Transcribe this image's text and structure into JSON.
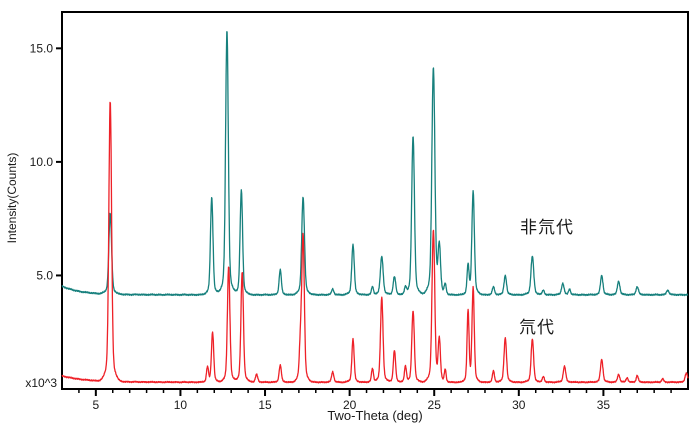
{
  "chart_data": {
    "type": "line",
    "title": "",
    "xlabel": "Two-Theta (deg)",
    "ylabel": "Intensity(Counts)",
    "y_multiplier_label": "x10^3",
    "xlim": [
      3,
      40
    ],
    "ylim": [
      0,
      16.6
    ],
    "grid": false,
    "frame": true,
    "background": "#ffffff",
    "axis_color": "#000000",
    "x_major_ticks": [
      5,
      10,
      15,
      20,
      25,
      30,
      35
    ],
    "x_minor_step": 1,
    "y_ticks": [
      {
        "value": 5,
        "label": "5.0"
      },
      {
        "value": 10,
        "label": "10.0"
      },
      {
        "value": 15,
        "label": "15.0"
      }
    ],
    "legend_position": "inline-annotations",
    "series": [
      {
        "name": "非氘代",
        "color": "#17807d",
        "label_color": "#69b0ae",
        "baseline": 4.15,
        "baseline_left_boost": {
          "amp": 0.38,
          "tau": 1.1
        },
        "noise": 0.02,
        "peaks_format": [
          "two_theta_deg",
          "peak_top_value_x10^3",
          "width_deg"
        ],
        "peaks": [
          [
            5.85,
            7.7,
            0.11
          ],
          [
            11.85,
            8.45,
            0.1
          ],
          [
            12.75,
            15.8,
            0.11
          ],
          [
            13.6,
            8.75,
            0.1
          ],
          [
            15.9,
            5.25,
            0.09
          ],
          [
            17.25,
            8.45,
            0.11
          ],
          [
            19.0,
            4.4,
            0.09
          ],
          [
            20.2,
            6.35,
            0.1
          ],
          [
            21.35,
            4.5,
            0.08
          ],
          [
            21.9,
            5.85,
            0.11
          ],
          [
            22.65,
            4.95,
            0.1
          ],
          [
            23.3,
            4.45,
            0.08
          ],
          [
            23.75,
            11.15,
            0.11
          ],
          [
            24.95,
            14.15,
            0.12
          ],
          [
            25.3,
            6.2,
            0.1
          ],
          [
            25.65,
            4.6,
            0.08
          ],
          [
            27.0,
            5.4,
            0.08
          ],
          [
            27.3,
            8.7,
            0.1
          ],
          [
            28.5,
            4.5,
            0.09
          ],
          [
            29.2,
            5.0,
            0.1
          ],
          [
            30.8,
            5.85,
            0.11
          ],
          [
            31.45,
            4.35,
            0.08
          ],
          [
            32.6,
            4.65,
            0.1
          ],
          [
            33.0,
            4.4,
            0.08
          ],
          [
            34.9,
            5.0,
            0.1
          ],
          [
            35.9,
            4.75,
            0.1
          ],
          [
            37.0,
            4.5,
            0.1
          ],
          [
            38.8,
            4.35,
            0.1
          ]
        ]
      },
      {
        "name": "氘代",
        "color": "#ee2128",
        "label_color": "#f2797e",
        "baseline": 0.3,
        "baseline_left_boost": {
          "amp": 0.28,
          "tau": 1.4
        },
        "noise": 0.018,
        "peaks_format": [
          "two_theta_deg",
          "peak_top_value_x10^3",
          "width_deg"
        ],
        "peaks": [
          [
            5.85,
            12.65,
            0.11
          ],
          [
            11.6,
            0.95,
            0.08
          ],
          [
            11.9,
            2.5,
            0.09
          ],
          [
            12.85,
            5.4,
            0.1
          ],
          [
            13.65,
            5.15,
            0.1
          ],
          [
            14.5,
            0.65,
            0.09
          ],
          [
            15.9,
            1.05,
            0.09
          ],
          [
            17.1,
            2.0,
            0.09
          ],
          [
            17.25,
            6.65,
            0.1
          ],
          [
            19.0,
            0.75,
            0.09
          ],
          [
            20.2,
            2.2,
            0.09
          ],
          [
            21.35,
            0.9,
            0.08
          ],
          [
            21.9,
            4.05,
            0.1
          ],
          [
            22.65,
            1.7,
            0.09
          ],
          [
            23.3,
            1.0,
            0.08
          ],
          [
            23.75,
            3.45,
            0.1
          ],
          [
            24.95,
            7.0,
            0.11
          ],
          [
            25.3,
            2.15,
            0.09
          ],
          [
            25.65,
            0.85,
            0.07
          ],
          [
            27.0,
            3.4,
            0.08
          ],
          [
            27.3,
            4.45,
            0.09
          ],
          [
            28.5,
            0.8,
            0.08
          ],
          [
            29.2,
            2.25,
            0.1
          ],
          [
            30.8,
            2.2,
            0.1
          ],
          [
            31.45,
            0.55,
            0.08
          ],
          [
            32.7,
            1.0,
            0.1
          ],
          [
            34.9,
            1.3,
            0.1
          ],
          [
            35.9,
            0.65,
            0.09
          ],
          [
            36.4,
            0.5,
            0.08
          ],
          [
            37.0,
            0.6,
            0.08
          ],
          [
            38.5,
            0.45,
            0.08
          ],
          [
            39.9,
            0.7,
            0.1
          ]
        ]
      }
    ]
  }
}
